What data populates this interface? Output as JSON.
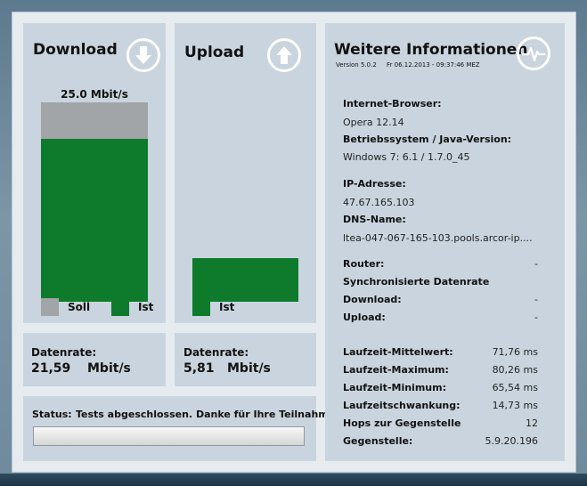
{
  "download": {
    "title": "Download",
    "bar_label": "25.0 Mbit/s",
    "soll_fraction": 1.0,
    "ist_fraction": 0.864,
    "legend_soll": "Soll",
    "legend_ist": "Ist",
    "datarate_label": "Datenrate:",
    "datarate_value": "21,59",
    "datarate_unit": "Mbit/s"
  },
  "upload": {
    "title": "Upload",
    "ist_fraction": 0.232,
    "legend_ist": "Ist",
    "datarate_label": "Datenrate:",
    "datarate_value": "5,81",
    "datarate_unit": "Mbit/s"
  },
  "status": {
    "label": "Status:",
    "text": "Tests abgeschlossen. Danke für Ihre Teilnahme!",
    "progress": 1.0
  },
  "info": {
    "title": "Weitere Informationen",
    "version": "Version 5.0.2",
    "datetime": "Fr 06.12.2013 - 09:37:46 MEZ",
    "browser_label": "Internet-Browser:",
    "browser_value": "Opera 12.14",
    "os_label": "Betriebssystem / Java-Version:",
    "os_value": "Windows 7: 6.1 / 1.7.0_45",
    "ip_label": "IP-Adresse:",
    "ip_value": "47.67.165.103",
    "dns_label": "DNS-Name:",
    "dns_value": "ltea-047-067-165-103.pools.arcor-ip....",
    "router_label": "Router:",
    "router_value": "-",
    "sync_label": "Synchronisierte Datenrate",
    "sync_download_label": "Download:",
    "sync_download_value": "-",
    "sync_upload_label": "Upload:",
    "sync_upload_value": "-",
    "metrics": [
      {
        "label": "Laufzeit-Mittelwert:",
        "value": "71,76 ms"
      },
      {
        "label": "Laufzeit-Maximum:",
        "value": "80,26 ms"
      },
      {
        "label": "Laufzeit-Minimum:",
        "value": "65,54 ms"
      },
      {
        "label": "Laufzeitschwankung:",
        "value": "14,73 ms"
      },
      {
        "label": "Hops zur Gegenstelle",
        "value": "12"
      },
      {
        "label": "Gegenstelle:",
        "value": "5.9.20.196"
      }
    ]
  },
  "colors": {
    "ist_green": "#0e7a2c",
    "soll_gray": "#a2a5a8",
    "panel": "#c9d4de"
  }
}
